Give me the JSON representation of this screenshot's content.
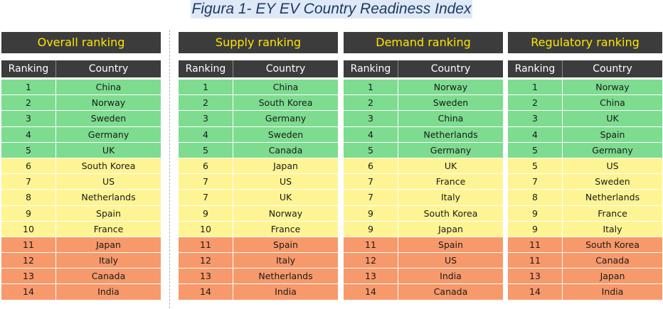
{
  "title": "Figura 1- EY EV Country Readiness Index",
  "colors": {
    "top": "#7ddc8f",
    "middle": "#fff494",
    "bottom": "#f7996b",
    "header_bg": "#3c3c3c",
    "header_text": "#ffe600"
  },
  "panels": [
    {
      "heading": "Overall ranking",
      "col_rank": "Ranking",
      "col_country": "Country",
      "rows": [
        {
          "rank": "1",
          "country": "China",
          "band": "g"
        },
        {
          "rank": "2",
          "country": "Norway",
          "band": "g"
        },
        {
          "rank": "3",
          "country": "Sweden",
          "band": "g"
        },
        {
          "rank": "4",
          "country": "Germany",
          "band": "g"
        },
        {
          "rank": "5",
          "country": "UK",
          "band": "g"
        },
        {
          "rank": "6",
          "country": "South Korea",
          "band": "y"
        },
        {
          "rank": "7",
          "country": "US",
          "band": "y"
        },
        {
          "rank": "8",
          "country": "Netherlands",
          "band": "y"
        },
        {
          "rank": "9",
          "country": "Spain",
          "band": "y"
        },
        {
          "rank": "10",
          "country": "France",
          "band": "y"
        },
        {
          "rank": "11",
          "country": "Japan",
          "band": "o"
        },
        {
          "rank": "12",
          "country": "Italy",
          "band": "o"
        },
        {
          "rank": "13",
          "country": "Canada",
          "band": "o"
        },
        {
          "rank": "14",
          "country": "India",
          "band": "o"
        }
      ]
    },
    {
      "heading": "Supply ranking",
      "col_rank": "Ranking",
      "col_country": "Country",
      "rows": [
        {
          "rank": "1",
          "country": "China",
          "band": "g"
        },
        {
          "rank": "2",
          "country": "South Korea",
          "band": "g"
        },
        {
          "rank": "3",
          "country": "Germany",
          "band": "g"
        },
        {
          "rank": "4",
          "country": "Sweden",
          "band": "g"
        },
        {
          "rank": "5",
          "country": "Canada",
          "band": "g"
        },
        {
          "rank": "6",
          "country": "Japan",
          "band": "y"
        },
        {
          "rank": "7",
          "country": "US",
          "band": "y"
        },
        {
          "rank": "7",
          "country": "UK",
          "band": "y"
        },
        {
          "rank": "9",
          "country": "Norway",
          "band": "y"
        },
        {
          "rank": "10",
          "country": "France",
          "band": "y"
        },
        {
          "rank": "11",
          "country": "Spain",
          "band": "o"
        },
        {
          "rank": "12",
          "country": "Italy",
          "band": "o"
        },
        {
          "rank": "13",
          "country": "Netherlands",
          "band": "o"
        },
        {
          "rank": "14",
          "country": "India",
          "band": "o"
        }
      ]
    },
    {
      "heading": "Demand ranking",
      "col_rank": "Ranking",
      "col_country": "Country",
      "rows": [
        {
          "rank": "1",
          "country": "Norway",
          "band": "g"
        },
        {
          "rank": "2",
          "country": "Sweden",
          "band": "g"
        },
        {
          "rank": "3",
          "country": "China",
          "band": "g"
        },
        {
          "rank": "4",
          "country": "Netherlands",
          "band": "g"
        },
        {
          "rank": "5",
          "country": "Germany",
          "band": "g"
        },
        {
          "rank": "6",
          "country": "UK",
          "band": "y"
        },
        {
          "rank": "7",
          "country": "France",
          "band": "y"
        },
        {
          "rank": "7",
          "country": "Italy",
          "band": "y"
        },
        {
          "rank": "9",
          "country": "South Korea",
          "band": "y"
        },
        {
          "rank": "9",
          "country": "Japan",
          "band": "y"
        },
        {
          "rank": "11",
          "country": "Spain",
          "band": "o"
        },
        {
          "rank": "12",
          "country": "US",
          "band": "o"
        },
        {
          "rank": "13",
          "country": "India",
          "band": "o"
        },
        {
          "rank": "14",
          "country": "Canada",
          "band": "o"
        }
      ]
    },
    {
      "heading": "Regulatory ranking",
      "col_rank": "Ranking",
      "col_country": "Country",
      "rows": [
        {
          "rank": "1",
          "country": "Norway",
          "band": "g"
        },
        {
          "rank": "2",
          "country": "China",
          "band": "g"
        },
        {
          "rank": "3",
          "country": "UK",
          "band": "g"
        },
        {
          "rank": "4",
          "country": "Spain",
          "band": "g"
        },
        {
          "rank": "5",
          "country": "Germany",
          "band": "g"
        },
        {
          "rank": "5",
          "country": "US",
          "band": "y"
        },
        {
          "rank": "7",
          "country": "Sweden",
          "band": "y"
        },
        {
          "rank": "8",
          "country": "Netherlands",
          "band": "y"
        },
        {
          "rank": "9",
          "country": "France",
          "band": "y"
        },
        {
          "rank": "9",
          "country": "Italy",
          "band": "y"
        },
        {
          "rank": "11",
          "country": "South Korea",
          "band": "o"
        },
        {
          "rank": "11",
          "country": "Canada",
          "band": "o"
        },
        {
          "rank": "13",
          "country": "Japan",
          "band": "o"
        },
        {
          "rank": "14",
          "country": "India",
          "band": "o"
        }
      ]
    }
  ]
}
